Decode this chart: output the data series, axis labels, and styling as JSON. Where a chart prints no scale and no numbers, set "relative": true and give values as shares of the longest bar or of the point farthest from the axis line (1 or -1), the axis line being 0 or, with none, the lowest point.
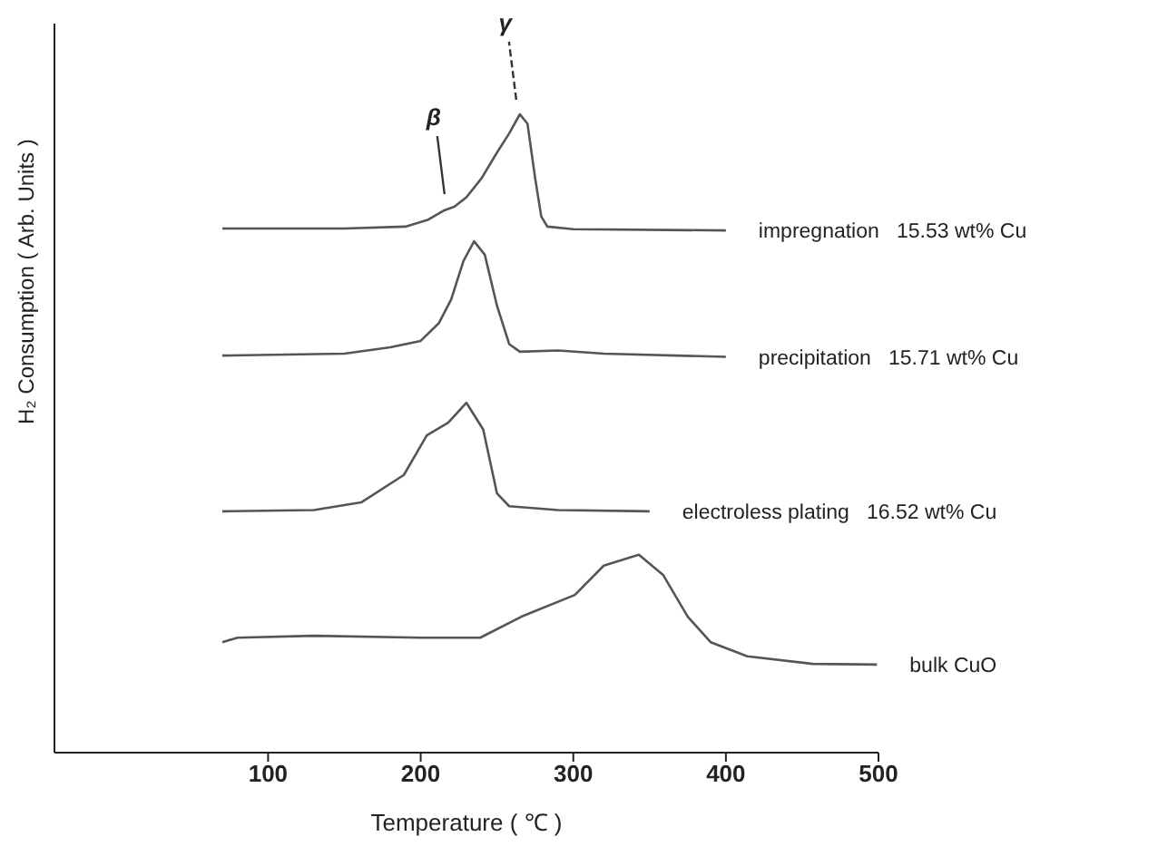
{
  "chart_data": {
    "type": "line",
    "relative": true,
    "xlabel": "Temperature ( ℃ )",
    "ylabel": "H₂ Consumption ( Arb. Units )",
    "xlim": [
      -40,
      500
    ],
    "xticks": [
      100,
      200,
      300,
      400,
      500
    ],
    "marker": "none",
    "line_style": "solid",
    "series": [
      {
        "name": "impregnation   15.53 wt% Cu",
        "color": "#555555",
        "x": [
          70,
          150,
          190,
          205,
          215,
          222,
          230,
          240,
          250,
          258,
          265,
          270,
          275,
          279,
          283,
          300,
          400
        ],
        "values": [
          0.821,
          0.821,
          0.824,
          0.835,
          0.849,
          0.855,
          0.87,
          0.9,
          0.94,
          0.97,
          1.0,
          0.985,
          0.9,
          0.84,
          0.824,
          0.82,
          0.818
        ]
      },
      {
        "name": "precipitation   15.71 wt% Cu",
        "color": "#555555",
        "x": [
          70,
          150,
          180,
          200,
          212,
          220,
          228,
          235,
          242,
          250,
          258,
          265,
          290,
          320,
          400
        ],
        "values": [
          0.622,
          0.625,
          0.635,
          0.645,
          0.673,
          0.71,
          0.77,
          0.801,
          0.78,
          0.7,
          0.64,
          0.628,
          0.63,
          0.625,
          0.62
        ]
      },
      {
        "name": "electroless plating   16.52 wt% Cu",
        "color": "#555555",
        "x": [
          70,
          130,
          161,
          189,
          204,
          218,
          230,
          241,
          250,
          258,
          290,
          350
        ],
        "values": [
          0.378,
          0.38,
          0.392,
          0.435,
          0.497,
          0.517,
          0.548,
          0.506,
          0.406,
          0.386,
          0.38,
          0.378
        ]
      },
      {
        "name": "bulk CuO",
        "color": "#555555",
        "x": [
          70,
          80,
          130,
          200,
          239,
          266,
          301,
          320,
          343,
          359,
          375,
          390,
          414,
          457,
          499
        ],
        "values": [
          0.173,
          0.18,
          0.183,
          0.18,
          0.18,
          0.213,
          0.247,
          0.293,
          0.31,
          0.278,
          0.213,
          0.173,
          0.151,
          0.139,
          0.138
        ]
      }
    ],
    "annotations": [
      {
        "text": "β",
        "x": 218,
        "y": 0.852
      },
      {
        "text": "γ",
        "x": 265,
        "y": 1.0
      }
    ]
  }
}
